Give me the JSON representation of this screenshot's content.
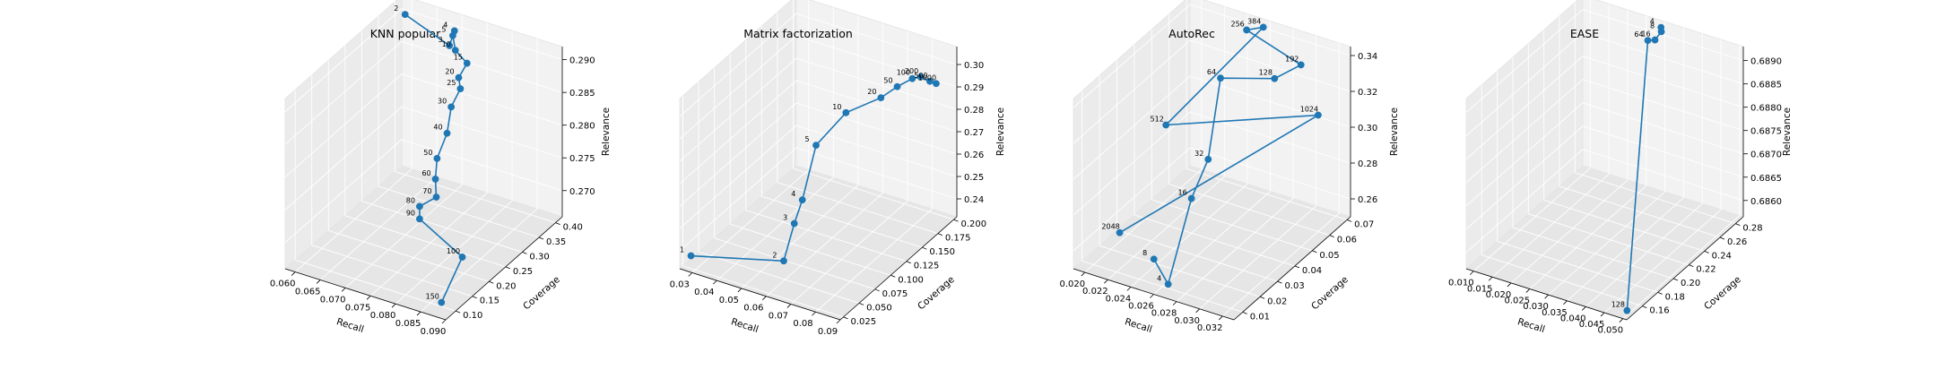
{
  "chart_data": [
    {
      "type": "line3d",
      "title": "KNN popular",
      "xlabel": "Recall",
      "ylabel": "Coverage",
      "zlabel": "Relevance",
      "xlim": [
        0.058,
        0.09
      ],
      "ylim": [
        0.07,
        0.42
      ],
      "zlim": [
        0.266,
        0.292
      ],
      "xticks": [
        "0.060",
        "0.065",
        "0.070",
        "0.075",
        "0.080",
        "0.085",
        "0.090"
      ],
      "yticks": [
        "0.10",
        "0.15",
        "0.20",
        "0.25",
        "0.30",
        "0.35",
        "0.40"
      ],
      "zticks": [
        "0.270",
        "0.275",
        "0.280",
        "0.285",
        "0.290"
      ],
      "points": [
        {
          "label": "2",
          "x": 0.06,
          "y": 0.4,
          "z": 0.2905
        },
        {
          "label": "3",
          "x": 0.0695,
          "y": 0.39,
          "z": 0.2885
        },
        {
          "label": "4",
          "x": 0.0705,
          "y": 0.39,
          "z": 0.291
        },
        {
          "label": "5",
          "x": 0.0705,
          "y": 0.385,
          "z": 0.2905
        },
        {
          "label": "10",
          "x": 0.072,
          "y": 0.37,
          "z": 0.2893
        },
        {
          "label": "15",
          "x": 0.075,
          "y": 0.36,
          "z": 0.2885
        },
        {
          "label": "20",
          "x": 0.074,
          "y": 0.35,
          "z": 0.2865
        },
        {
          "label": "25",
          "x": 0.075,
          "y": 0.34,
          "z": 0.2855
        },
        {
          "label": "30",
          "x": 0.0745,
          "y": 0.32,
          "z": 0.2835
        },
        {
          "label": "40",
          "x": 0.075,
          "y": 0.3,
          "z": 0.2805
        },
        {
          "label": "50",
          "x": 0.075,
          "y": 0.27,
          "z": 0.278
        },
        {
          "label": "60",
          "x": 0.076,
          "y": 0.25,
          "z": 0.276
        },
        {
          "label": "70",
          "x": 0.0775,
          "y": 0.23,
          "z": 0.2745
        },
        {
          "label": "80",
          "x": 0.0755,
          "y": 0.21,
          "z": 0.2735
        },
        {
          "label": "90",
          "x": 0.0765,
          "y": 0.195,
          "z": 0.2725
        },
        {
          "label": "100",
          "x": 0.088,
          "y": 0.15,
          "z": 0.2715
        },
        {
          "label": "150",
          "x": 0.0865,
          "y": 0.11,
          "z": 0.266
        }
      ]
    },
    {
      "type": "line3d",
      "title": "Matrix factorization",
      "xlabel": "Recall",
      "ylabel": "Coverage",
      "zlabel": "Relevance",
      "xlim": [
        0.025,
        0.09
      ],
      "ylim": [
        0.02,
        0.205
      ],
      "zlim": [
        0.232,
        0.308
      ],
      "xticks": [
        "0.03",
        "0.04",
        "0.05",
        "0.06",
        "0.07",
        "0.08",
        "0.09"
      ],
      "yticks": [
        "0.025",
        "0.050",
        "0.075",
        "0.100",
        "0.125",
        "0.150",
        "0.175",
        "0.200"
      ],
      "zticks": [
        "0.24",
        "0.25",
        "0.26",
        "0.27",
        "0.28",
        "0.29",
        "0.30"
      ],
      "points": [
        {
          "label": "1",
          "x": 0.027,
          "y": 0.03,
          "z": 0.236
        },
        {
          "label": "2",
          "x": 0.062,
          "y": 0.04,
          "z": 0.2435
        },
        {
          "label": "3",
          "x": 0.065,
          "y": 0.045,
          "z": 0.26
        },
        {
          "label": "4",
          "x": 0.067,
          "y": 0.05,
          "z": 0.27
        },
        {
          "label": "5",
          "x": 0.07,
          "y": 0.06,
          "z": 0.293
        },
        {
          "label": "10",
          "x": 0.077,
          "y": 0.08,
          "z": 0.305
        },
        {
          "label": "20",
          "x": 0.0835,
          "y": 0.11,
          "z": 0.3065
        },
        {
          "label": "50",
          "x": 0.085,
          "y": 0.13,
          "z": 0.307
        },
        {
          "label": "100",
          "x": 0.086,
          "y": 0.15,
          "z": 0.306
        },
        {
          "label": "200",
          "x": 0.0868,
          "y": 0.16,
          "z": 0.3045
        },
        {
          "label": "500",
          "x": 0.088,
          "y": 0.17,
          "z": 0.3005
        },
        {
          "label": "1000",
          "x": 0.088,
          "y": 0.18,
          "z": 0.297
        }
      ]
    },
    {
      "type": "line3d",
      "title": "AutoRec",
      "xlabel": "Recall",
      "ylabel": "Coverage",
      "zlabel": "Relevance",
      "xlim": [
        0.019,
        0.033
      ],
      "ylim": [
        0.005,
        0.072
      ],
      "zlim": [
        0.25,
        0.345
      ],
      "xticks": [
        "0.020",
        "0.022",
        "0.024",
        "0.026",
        "0.028",
        "0.030",
        "0.032"
      ],
      "yticks": [
        "0.01",
        "0.02",
        "0.03",
        "0.04",
        "0.05",
        "0.06",
        "0.07"
      ],
      "zticks": [
        "0.26",
        "0.28",
        "0.30",
        "0.32",
        "0.34"
      ],
      "points": [
        {
          "label": "8",
          "x": 0.0245,
          "y": 0.015,
          "z": 0.258
        },
        {
          "label": "4",
          "x": 0.0262,
          "y": 0.012,
          "z": 0.25
        },
        {
          "label": "16",
          "x": 0.0255,
          "y": 0.03,
          "z": 0.281
        },
        {
          "label": "32",
          "x": 0.0262,
          "y": 0.035,
          "z": 0.3
        },
        {
          "label": "64",
          "x": 0.025,
          "y": 0.05,
          "z": 0.33
        },
        {
          "label": "128",
          "x": 0.0285,
          "y": 0.058,
          "z": 0.33
        },
        {
          "label": "192",
          "x": 0.0305,
          "y": 0.06,
          "z": 0.34
        },
        {
          "label": "256",
          "x": 0.025,
          "y": 0.065,
          "z": 0.344
        },
        {
          "label": "384",
          "x": 0.026,
          "y": 0.068,
          "z": 0.345
        },
        {
          "label": "512",
          "x": 0.021,
          "y": 0.045,
          "z": 0.3
        },
        {
          "label": "1024",
          "x": 0.032,
          "y": 0.06,
          "z": 0.315
        },
        {
          "label": "2048",
          "x": 0.02,
          "y": 0.025,
          "z": 0.255
        }
      ]
    },
    {
      "type": "line3d",
      "title": "EASE",
      "xlabel": "Recall",
      "ylabel": "Coverage",
      "zlabel": "Relevance",
      "xlim": [
        0.008,
        0.051
      ],
      "ylim": [
        0.14,
        0.29
      ],
      "zlim": [
        0.68565,
        0.6893
      ],
      "xticks": [
        "0.010",
        "0.015",
        "0.020",
        "0.025",
        "0.030",
        "0.035",
        "0.040",
        "0.045",
        "0.050"
      ],
      "yticks": [
        "0.16",
        "0.18",
        "0.20",
        "0.22",
        "0.24",
        "0.26",
        "0.28"
      ],
      "zticks": [
        "0.6860",
        "0.6865",
        "0.6870",
        "0.6875",
        "0.6880",
        "0.6885",
        "0.6890"
      ],
      "points": [
        {
          "label": "4",
          "x": 0.03,
          "y": 0.285,
          "z": 0.68925
        },
        {
          "label": "8",
          "x": 0.0305,
          "y": 0.283,
          "z": 0.6892
        },
        {
          "label": "16",
          "x": 0.029,
          "y": 0.282,
          "z": 0.689
        },
        {
          "label": "64",
          "x": 0.0275,
          "y": 0.28,
          "z": 0.68898
        },
        {
          "label": "128",
          "x": 0.049,
          "y": 0.15,
          "z": 0.68565
        }
      ]
    }
  ]
}
